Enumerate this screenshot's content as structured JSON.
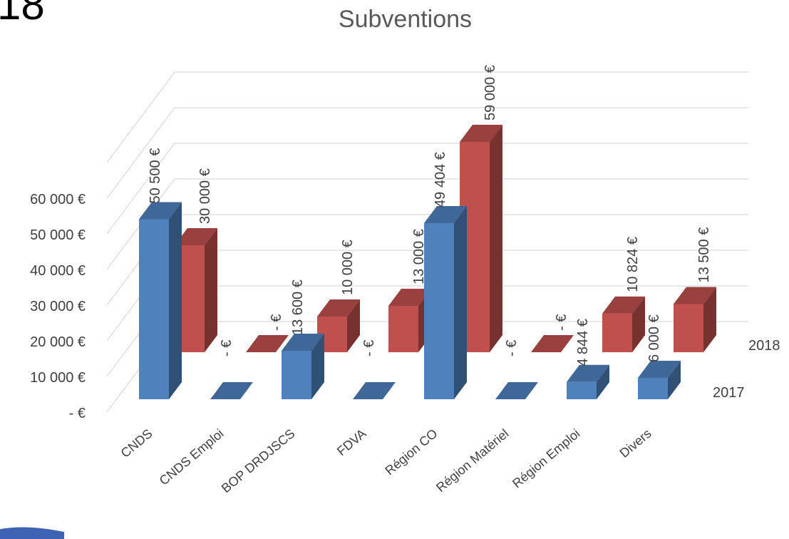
{
  "page": {
    "corner_text": "18"
  },
  "colors": {
    "series_2017": "#4f81bd",
    "series_2018": "#c0504d",
    "grid": "#d9d9d9",
    "text": "#404040"
  },
  "chart_data": {
    "type": "bar",
    "view": "3d-clustered-depth",
    "title": "Subventions",
    "xlabel": "",
    "ylabel": "",
    "categories": [
      "CNDS",
      "CNDS Emploi",
      "BOP DRDJSCS",
      "FDVA",
      "Région CO",
      "Région Matériel",
      "Région Emploi",
      "Divers"
    ],
    "ylim": [
      0,
      70000
    ],
    "yticks": [
      0,
      10000,
      20000,
      30000,
      40000,
      50000,
      60000
    ],
    "ytick_labels": [
      "-  €",
      "10 000  €",
      "20 000  €",
      "30 000  €",
      "40 000  €",
      "50 000  €",
      "60 000  €"
    ],
    "grid": true,
    "legend": "series labels at right end of each depth row",
    "series": [
      {
        "name": "2017",
        "values": [
          50500,
          0,
          13600,
          0,
          49404,
          0,
          4844,
          6000
        ],
        "labels": [
          "50 500 €",
          "- €",
          "13 600 €",
          "- €",
          "49 404 €",
          "- €",
          "4 844 €",
          "6 000 €"
        ]
      },
      {
        "name": "2018",
        "values": [
          30000,
          0,
          10000,
          13000,
          59000,
          0,
          10824,
          13500
        ],
        "labels": [
          "30 000 €",
          "- €",
          "10 000 €",
          "13 000 €",
          "59 000 €",
          "- €",
          "10 824 €",
          "13 500 €"
        ]
      }
    ]
  }
}
